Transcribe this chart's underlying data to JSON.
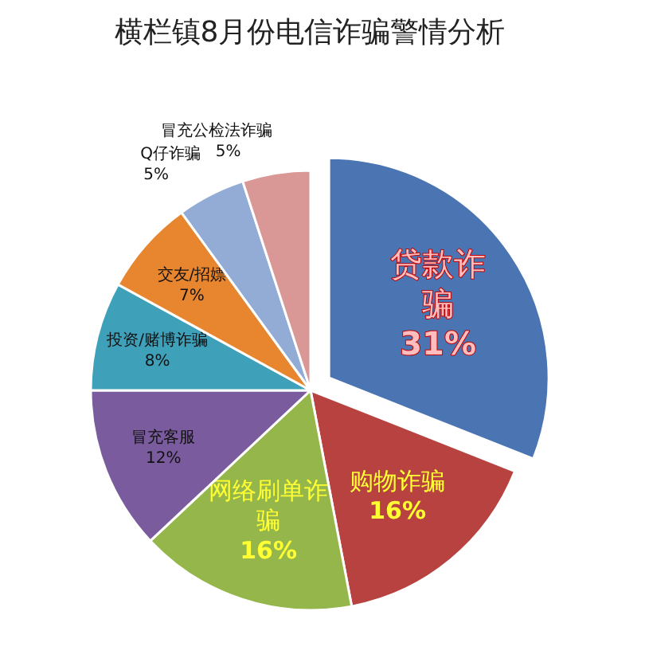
{
  "chart_data": {
    "type": "pie",
    "title": "横栏镇8月份电信诈骗警情分析",
    "categories": [
      "贷款诈骗",
      "购物诈骗",
      "网络刷单诈骗",
      "冒充客服",
      "投资/赌博诈骗",
      "交友/招嫖",
      "Q仔诈骗",
      "冒充公检法诈骗"
    ],
    "values": [
      31,
      16,
      16,
      12,
      8,
      7,
      5,
      5
    ],
    "colors": [
      "#4a74b2",
      "#b8423f",
      "#95b64a",
      "#7a5b9d",
      "#3ea0b9",
      "#e8862f",
      "#93acd6",
      "#d99895"
    ],
    "value_labels": [
      "31%",
      "16%",
      "16%",
      "12%",
      "8%",
      "7%",
      "5%",
      "5%"
    ]
  }
}
